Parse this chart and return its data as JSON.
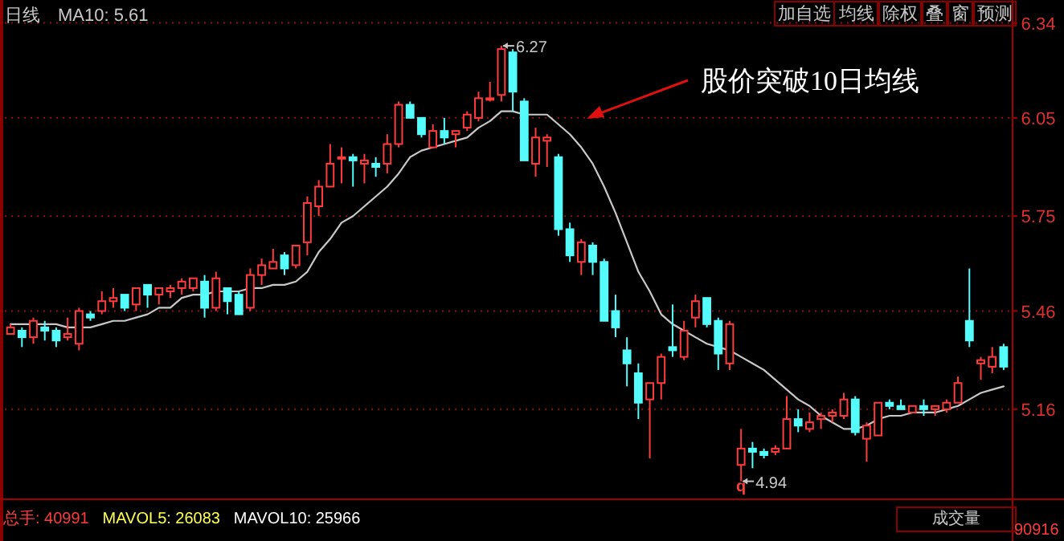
{
  "chart_data": {
    "type": "candlestick",
    "categories": [
      null,
      null,
      null,
      null,
      null,
      null,
      null,
      null,
      null,
      null,
      null,
      null,
      null,
      null,
      null,
      null,
      null,
      null,
      null,
      null,
      null,
      null,
      null,
      null,
      null,
      null,
      null,
      null,
      null,
      null,
      null,
      null,
      null,
      null,
      null,
      null,
      null,
      null,
      null,
      null,
      null,
      null,
      null,
      null,
      null,
      null,
      null,
      null,
      null,
      null,
      null,
      null,
      null,
      null,
      null,
      null,
      null,
      null,
      null,
      null,
      null,
      null,
      null,
      null,
      null,
      null,
      null,
      null,
      null,
      null,
      null,
      null,
      null,
      null,
      null,
      null,
      null,
      null,
      null,
      null,
      null,
      null,
      null,
      null,
      null,
      null,
      null,
      null
    ],
    "ohlc": [
      [
        5.39,
        5.42,
        5.39,
        5.41
      ],
      [
        5.4,
        5.41,
        5.35,
        5.38
      ],
      [
        5.38,
        5.44,
        5.36,
        5.43
      ],
      [
        5.41,
        5.43,
        5.37,
        5.4
      ],
      [
        5.4,
        5.41,
        5.35,
        5.37
      ],
      [
        5.38,
        5.44,
        5.37,
        5.39
      ],
      [
        5.36,
        5.47,
        5.34,
        5.46
      ],
      [
        5.45,
        5.46,
        5.43,
        5.44
      ],
      [
        5.46,
        5.52,
        5.45,
        5.49
      ],
      [
        5.49,
        5.53,
        5.47,
        5.5
      ],
      [
        5.51,
        5.51,
        5.46,
        5.47
      ],
      [
        5.48,
        5.53,
        5.46,
        5.53
      ],
      [
        5.54,
        5.54,
        5.47,
        5.51
      ],
      [
        5.51,
        5.53,
        5.48,
        5.53
      ],
      [
        5.52,
        5.54,
        5.5,
        5.53
      ],
      [
        5.53,
        5.56,
        5.51,
        5.55
      ],
      [
        5.53,
        5.56,
        5.52,
        5.56
      ],
      [
        5.55,
        5.57,
        5.44,
        5.47
      ],
      [
        5.47,
        5.58,
        5.46,
        5.56
      ],
      [
        5.53,
        5.53,
        5.45,
        5.49
      ],
      [
        5.51,
        5.52,
        5.45,
        5.45
      ],
      [
        5.47,
        5.59,
        5.46,
        5.57
      ],
      [
        5.57,
        5.62,
        5.54,
        5.6
      ],
      [
        5.59,
        5.65,
        5.59,
        5.61
      ],
      [
        5.63,
        5.64,
        5.57,
        5.59
      ],
      [
        5.6,
        5.66,
        5.59,
        5.66
      ],
      [
        5.67,
        5.81,
        5.63,
        5.79
      ],
      [
        5.78,
        5.86,
        5.75,
        5.84
      ],
      [
        5.84,
        5.97,
        5.84,
        5.91
      ],
      [
        5.93,
        5.96,
        5.85,
        5.93
      ],
      [
        5.93,
        5.94,
        5.84,
        5.92
      ],
      [
        5.91,
        5.94,
        5.85,
        5.92
      ],
      [
        5.91,
        5.93,
        5.87,
        5.9
      ],
      [
        5.91,
        6.0,
        5.88,
        5.97
      ],
      [
        5.97,
        6.1,
        5.96,
        6.09
      ],
      [
        6.09,
        6.1,
        6.05,
        6.05
      ],
      [
        6.05,
        6.05,
        5.99,
        6.0
      ],
      [
        5.96,
        6.03,
        5.96,
        6.01
      ],
      [
        6.01,
        6.05,
        5.97,
        5.99
      ],
      [
        6.0,
        6.01,
        5.96,
        6.01
      ],
      [
        6.02,
        6.07,
        6.01,
        6.06
      ],
      [
        6.05,
        6.13,
        6.04,
        6.11
      ],
      [
        6.11,
        6.16,
        6.1,
        6.11
      ],
      [
        6.12,
        6.27,
        6.1,
        6.26
      ],
      [
        6.25,
        6.26,
        6.07,
        6.13
      ],
      [
        6.1,
        6.11,
        5.92,
        5.92
      ],
      [
        5.91,
        6.02,
        5.87,
        5.99
      ],
      [
        5.98,
        6.0,
        5.9,
        5.99
      ],
      [
        5.93,
        5.94,
        5.69,
        5.71
      ],
      [
        5.71,
        5.73,
        5.61,
        5.63
      ],
      [
        5.61,
        5.68,
        5.57,
        5.67
      ],
      [
        5.66,
        5.67,
        5.57,
        5.61
      ],
      [
        5.61,
        5.62,
        5.43,
        5.43
      ],
      [
        5.46,
        5.51,
        5.38,
        5.41
      ],
      [
        5.34,
        5.38,
        5.23,
        5.3
      ],
      [
        5.27,
        5.3,
        5.13,
        5.18
      ],
      [
        5.19,
        5.24,
        5.01,
        5.24
      ],
      [
        5.24,
        5.33,
        5.19,
        5.32
      ],
      [
        5.35,
        5.48,
        5.32,
        5.34
      ],
      [
        5.32,
        5.43,
        5.31,
        5.4
      ],
      [
        5.44,
        5.51,
        5.41,
        5.49
      ],
      [
        5.5,
        5.5,
        5.41,
        5.42
      ],
      [
        5.43,
        5.44,
        5.28,
        5.33
      ],
      [
        5.3,
        5.43,
        5.28,
        5.42
      ],
      [
        4.99,
        5.1,
        4.94,
        5.04
      ],
      [
        5.04,
        5.06,
        4.98,
        5.03
      ],
      [
        5.03,
        5.04,
        5.01,
        5.02
      ],
      [
        5.03,
        5.05,
        5.02,
        5.04
      ],
      [
        5.04,
        5.2,
        5.04,
        5.13
      ],
      [
        5.13,
        5.16,
        5.09,
        5.11
      ],
      [
        5.1,
        5.15,
        5.09,
        5.12
      ],
      [
        5.13,
        5.15,
        5.1,
        5.14
      ],
      [
        5.14,
        5.16,
        5.12,
        5.15
      ],
      [
        5.14,
        5.21,
        5.13,
        5.19
      ],
      [
        5.19,
        5.2,
        5.08,
        5.09
      ],
      [
        5.07,
        5.12,
        5.0,
        5.11
      ],
      [
        5.08,
        5.18,
        5.08,
        5.18
      ],
      [
        5.18,
        5.19,
        5.16,
        5.17
      ],
      [
        5.17,
        5.19,
        5.16,
        5.16
      ],
      [
        5.15,
        5.17,
        5.15,
        5.17
      ],
      [
        5.17,
        5.19,
        5.14,
        5.16
      ],
      [
        5.16,
        5.17,
        5.14,
        5.17
      ],
      [
        5.16,
        5.19,
        5.15,
        5.18
      ],
      [
        5.18,
        5.26,
        5.18,
        5.24
      ],
      [
        5.43,
        5.59,
        5.35,
        5.37
      ],
      [
        5.3,
        5.32,
        5.25,
        5.31
      ],
      [
        5.29,
        5.35,
        5.27,
        5.32
      ],
      [
        5.35,
        5.36,
        5.28,
        5.29
      ]
    ],
    "colors": [
      "#ff3c3c",
      "#54fcfc",
      "#ff3c3c",
      "#54fcfc",
      "#54fcfc",
      "#ff3c3c",
      "#ff3c3c",
      "#54fcfc",
      "#ff3c3c",
      "#ff3c3c",
      "#54fcfc",
      "#ff3c3c",
      "#54fcfc",
      "#ff3c3c",
      "#ff3c3c",
      "#ff3c3c",
      "#ff3c3c",
      "#54fcfc",
      "#ff3c3c",
      "#54fcfc",
      "#54fcfc",
      "#ff3c3c",
      "#ff3c3c",
      "#ff3c3c",
      "#54fcfc",
      "#ff3c3c",
      "#ff3c3c",
      "#ff3c3c",
      "#ff3c3c",
      "#ff3c3c",
      "#54fcfc",
      "#ff3c3c",
      "#54fcfc",
      "#ff3c3c",
      "#ff3c3c",
      "#54fcfc",
      "#54fcfc",
      "#ff3c3c",
      "#54fcfc",
      "#ff3c3c",
      "#ff3c3c",
      "#ff3c3c",
      "#ff3c3c",
      "#ff3c3c",
      "#54fcfc",
      "#54fcfc",
      "#ff3c3c",
      "#ff3c3c",
      "#54fcfc",
      "#54fcfc",
      "#ff3c3c",
      "#54fcfc",
      "#54fcfc",
      "#54fcfc",
      "#54fcfc",
      "#54fcfc",
      "#ff3c3c",
      "#ff3c3c",
      "#54fcfc",
      "#ff3c3c",
      "#ff3c3c",
      "#54fcfc",
      "#54fcfc",
      "#ff3c3c",
      "#ff3c3c",
      "#54fcfc",
      "#54fcfc",
      "#ff3c3c",
      "#ff3c3c",
      "#54fcfc",
      "#ff3c3c",
      "#ff3c3c",
      "#ff3c3c",
      "#ff3c3c",
      "#54fcfc",
      "#ff3c3c",
      "#ff3c3c",
      "#54fcfc",
      "#54fcfc",
      "#ff3c3c",
      "#54fcfc",
      "#ff3c3c",
      "#ff3c3c",
      "#ff3c3c",
      "#54fcfc",
      "#ff3c3c",
      "#ff3c3c",
      "#54fcfc"
    ],
    "series": [
      {
        "type": "line",
        "color": "#c8c8c8",
        "values": [
          5.42,
          5.42,
          5.42,
          5.42,
          5.42,
          5.41,
          5.41,
          5.41,
          5.42,
          5.43,
          5.43,
          5.44,
          5.45,
          5.47,
          5.47,
          5.5,
          5.51,
          5.51,
          5.52,
          5.52,
          5.52,
          5.53,
          5.53,
          5.54,
          5.54,
          5.55,
          5.58,
          5.64,
          5.68,
          5.73,
          5.75,
          5.78,
          5.81,
          5.84,
          5.88,
          5.93,
          5.95,
          5.96,
          5.97,
          5.98,
          5.99,
          6.02,
          6.04,
          6.07,
          6.07,
          6.06,
          6.06,
          6.06,
          6.03,
          6.0,
          5.96,
          5.91,
          5.84,
          5.76,
          5.67,
          5.58,
          5.52,
          5.45,
          5.42,
          5.4,
          5.38,
          5.36,
          5.35,
          5.34,
          5.32,
          5.3,
          5.28,
          5.25,
          5.22,
          5.19,
          5.17,
          5.14,
          5.12,
          5.1,
          5.1,
          5.11,
          5.13,
          5.14,
          5.14,
          5.15,
          5.15,
          5.15,
          5.16,
          5.17,
          5.19,
          5.21,
          5.22,
          5.23
        ]
      }
    ],
    "ylim": [
      4.89,
      6.41
    ],
    "yticks": [
      6.34,
      6.05,
      5.75,
      5.46,
      5.16
    ],
    "grid": "y",
    "tick_labels": "y",
    "annotations": [
      "日线",
      "MA10: 5.61",
      "加自选",
      "均线",
      "除权",
      "叠",
      "窗",
      "预测",
      "股价突破10日均线",
      "总手: 40991",
      "MAVOL5: 26083",
      "MAVOL10: 25966",
      "成交量",
      "90916",
      "q",
      "6.27",
      "4.94"
    ]
  }
}
